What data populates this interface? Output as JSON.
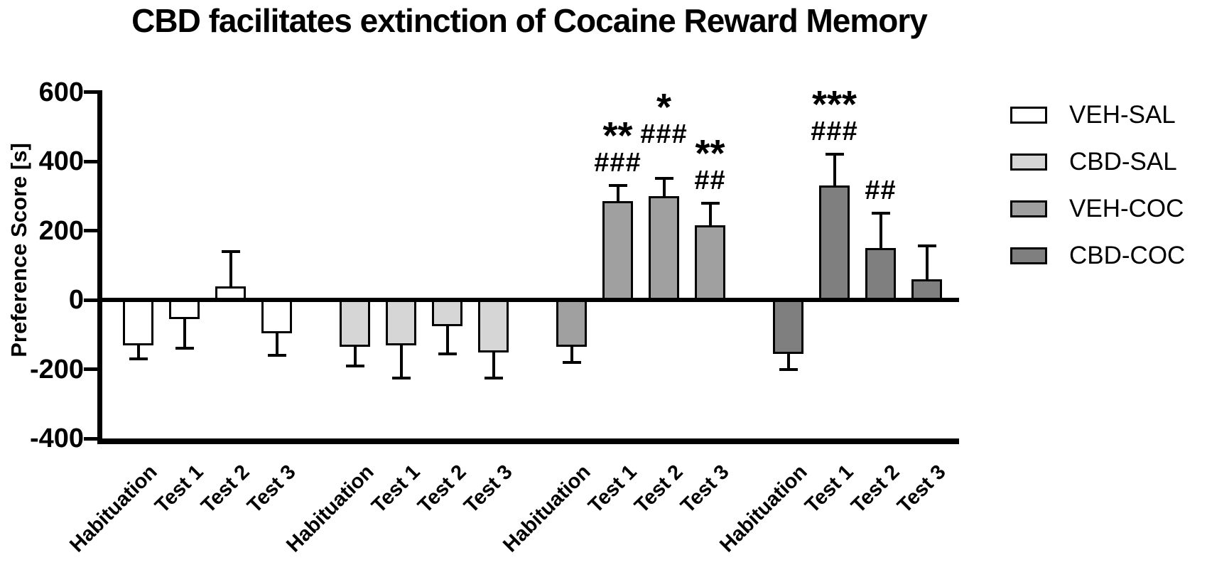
{
  "figure": {
    "title": "CBD facilitates extinction of Cocaine Reward Memory",
    "y_axis_label": "Preference Score [s]"
  },
  "chart_data": {
    "type": "bar",
    "title": "CBD facilitates extinction of Cocaine Reward Memory",
    "xlabel": "",
    "ylabel": "Preference Score [s]",
    "ylim": [
      -400,
      600
    ],
    "yticks": [
      600,
      400,
      200,
      0,
      -200,
      -400
    ],
    "grid": false,
    "legend_position": "right",
    "error_bars": "one-sided SEM, outward from bar end",
    "categories": [
      "Habituation",
      "Test 1",
      "Test 2",
      "Test 3"
    ],
    "series": [
      {
        "name": "VEH-SAL",
        "color": "#ffffff",
        "values": [
          -125,
          -50,
          40,
          -90
        ],
        "errors": [
          45,
          90,
          100,
          70
        ],
        "annotations": [
          null,
          null,
          null,
          null
        ]
      },
      {
        "name": "CBD-SAL",
        "color": "#d6d6d6",
        "values": [
          -130,
          -125,
          -70,
          -145
        ],
        "errors": [
          60,
          100,
          85,
          80
        ],
        "annotations": [
          null,
          null,
          null,
          null
        ]
      },
      {
        "name": "VEH-COC",
        "color": "#a0a0a0",
        "values": [
          -130,
          285,
          300,
          215
        ],
        "errors": [
          50,
          45,
          50,
          65
        ],
        "annotations": [
          null,
          {
            "stars": "**",
            "hashes": "###"
          },
          {
            "stars": "*",
            "hashes": "###"
          },
          {
            "stars": "**",
            "hashes": "##"
          }
        ]
      },
      {
        "name": "CBD-COC",
        "color": "#7f7f7f",
        "values": [
          -150,
          330,
          150,
          60
        ],
        "errors": [
          50,
          90,
          100,
          95
        ],
        "annotations": [
          null,
          {
            "stars": "***",
            "hashes": "###"
          },
          {
            "stars": "",
            "hashes": "##"
          },
          null
        ]
      }
    ]
  }
}
